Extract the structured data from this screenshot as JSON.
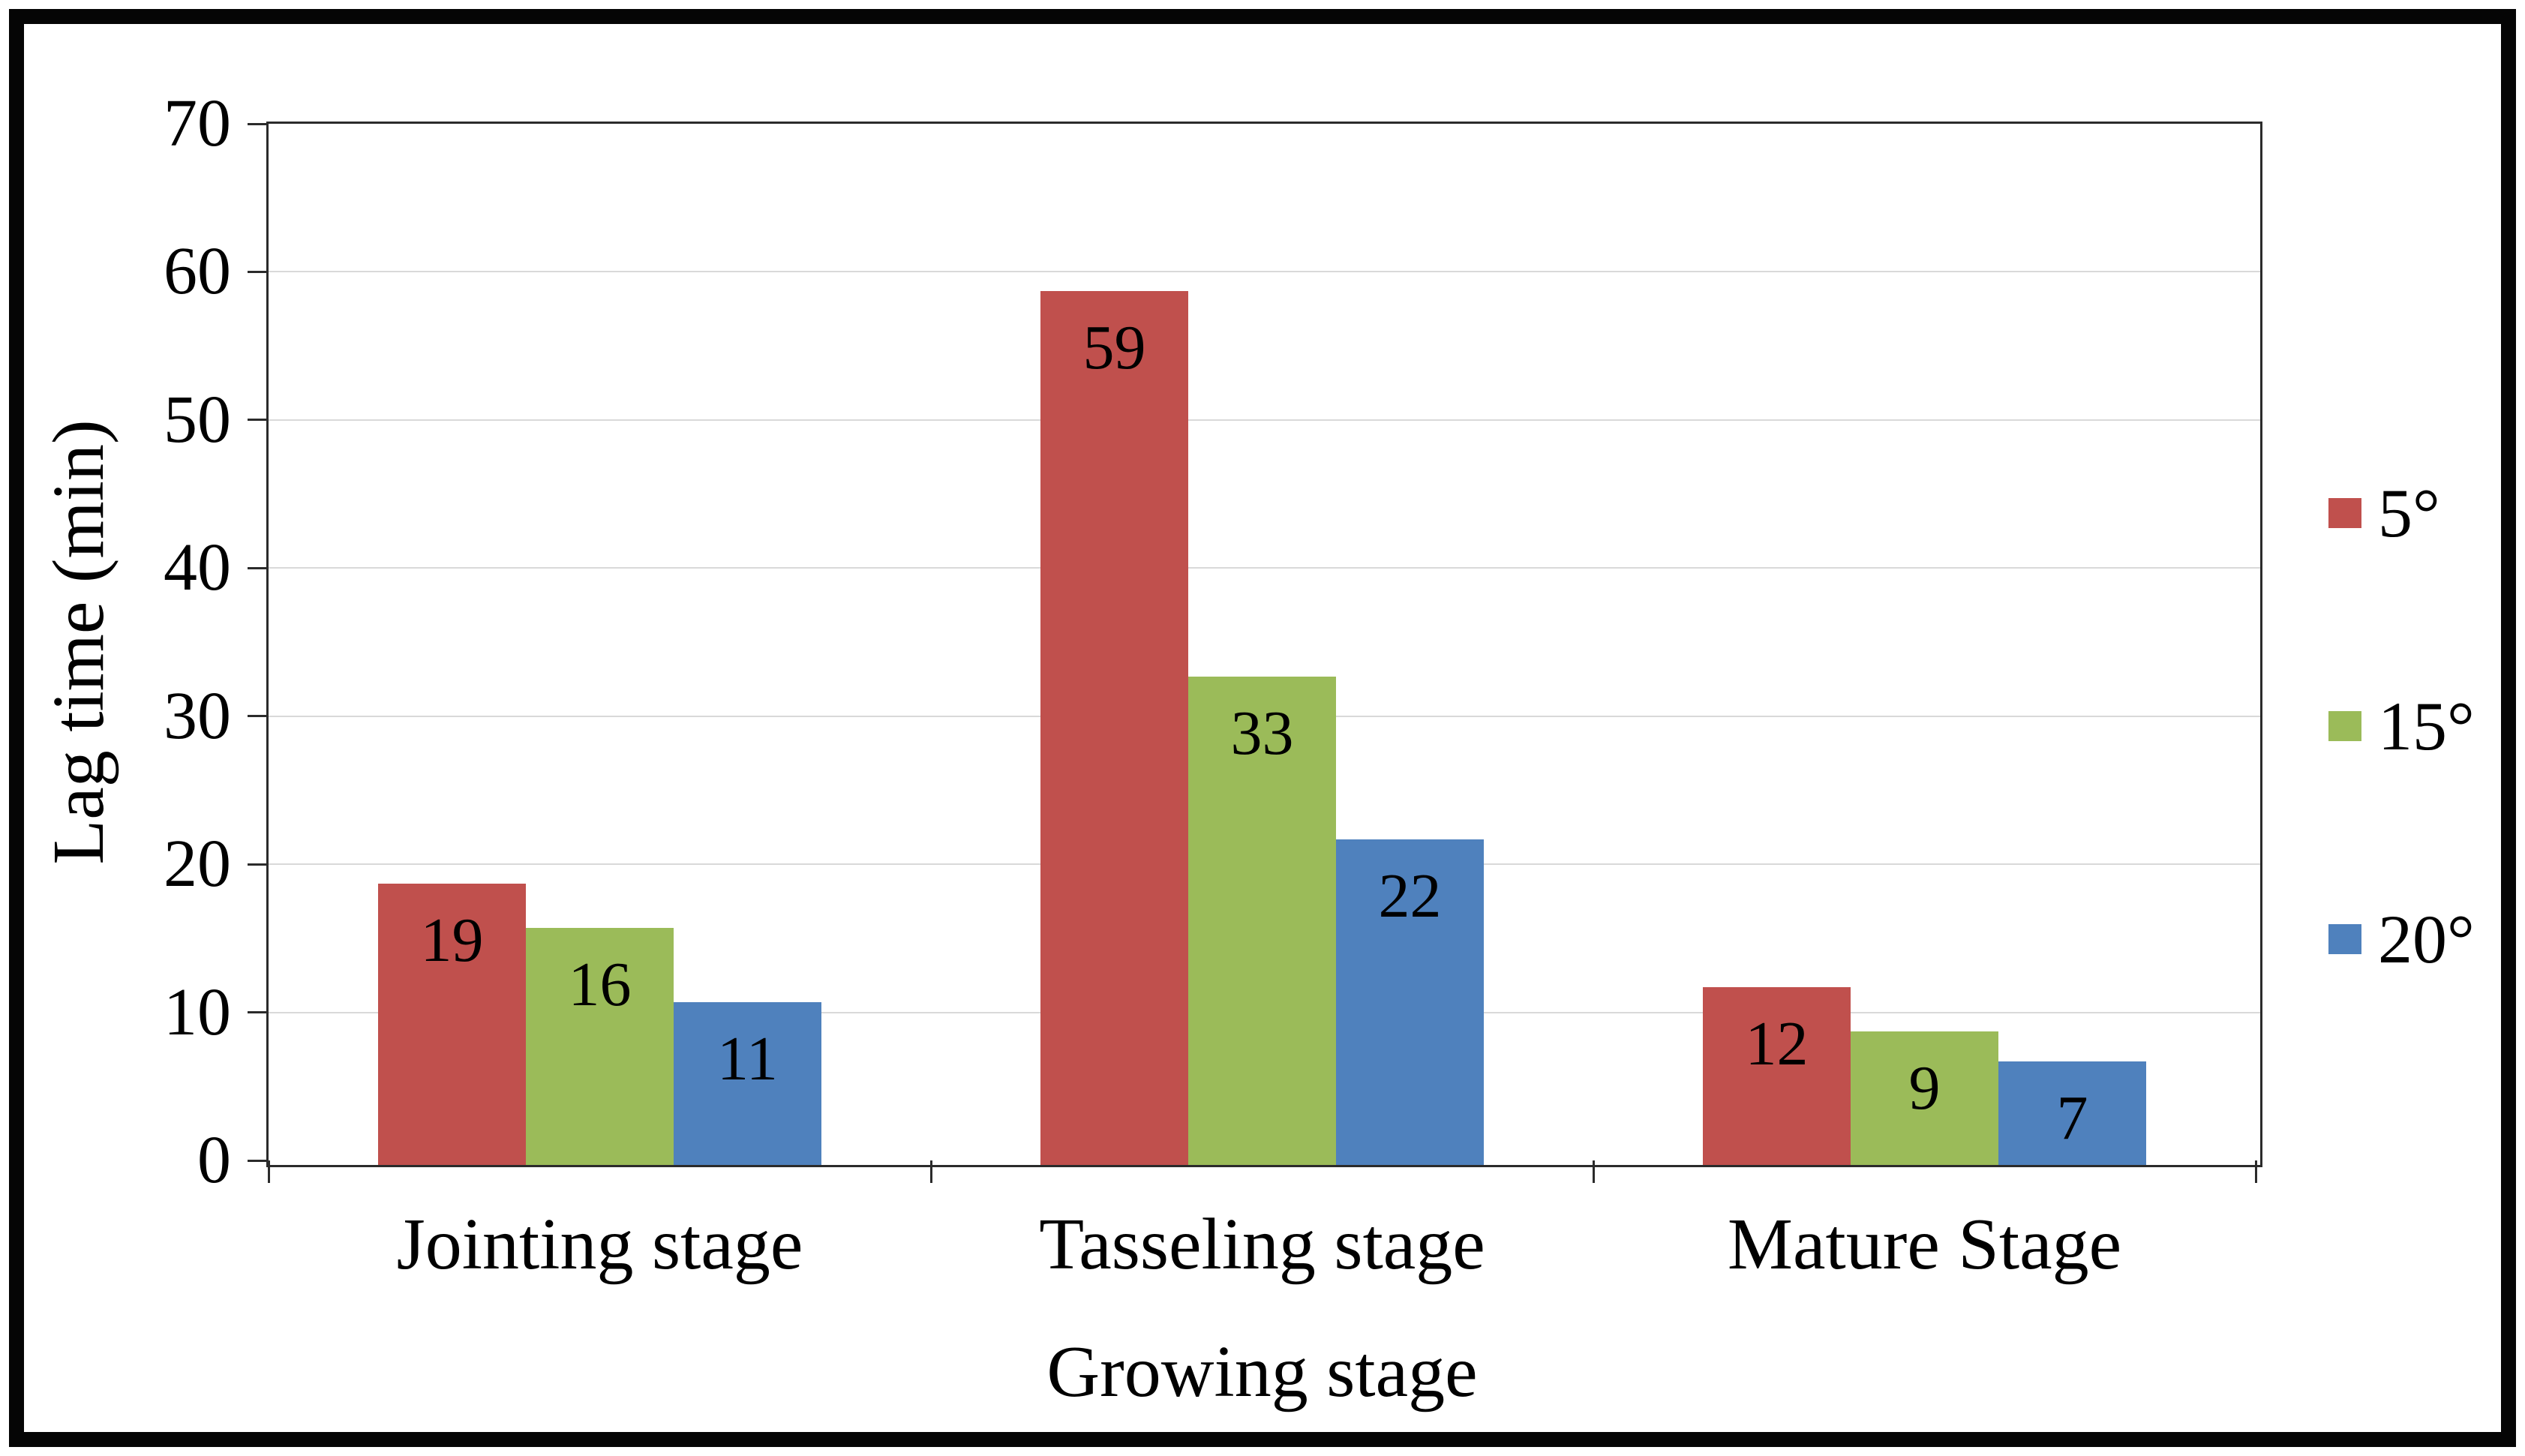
{
  "chart_data": {
    "type": "bar",
    "title": "",
    "categories": [
      "Jointing stage",
      "Tasseling stage",
      "Mature Stage"
    ],
    "series": [
      {
        "name": "5°",
        "color": "#C0504D",
        "values": [
          19,
          59,
          12
        ]
      },
      {
        "name": "15°",
        "color": "#9BBB59",
        "values": [
          16,
          33,
          9
        ]
      },
      {
        "name": "20°",
        "color": "#4F81BD",
        "values": [
          11,
          22,
          7
        ]
      }
    ],
    "xlabel": "Growing stage",
    "ylabel": "Lag time (min)",
    "ylim": [
      0,
      70
    ],
    "yticks": [
      0,
      10,
      20,
      30,
      40,
      50,
      60,
      70
    ],
    "grid": true,
    "legend_position": "right",
    "data_label_position": "inside-end",
    "axis_color": "#2b2b2b",
    "gridline_color": "#d9d9d9",
    "frame_color": "#050505",
    "background_color": "#ffffff",
    "text_color": "#000000"
  }
}
